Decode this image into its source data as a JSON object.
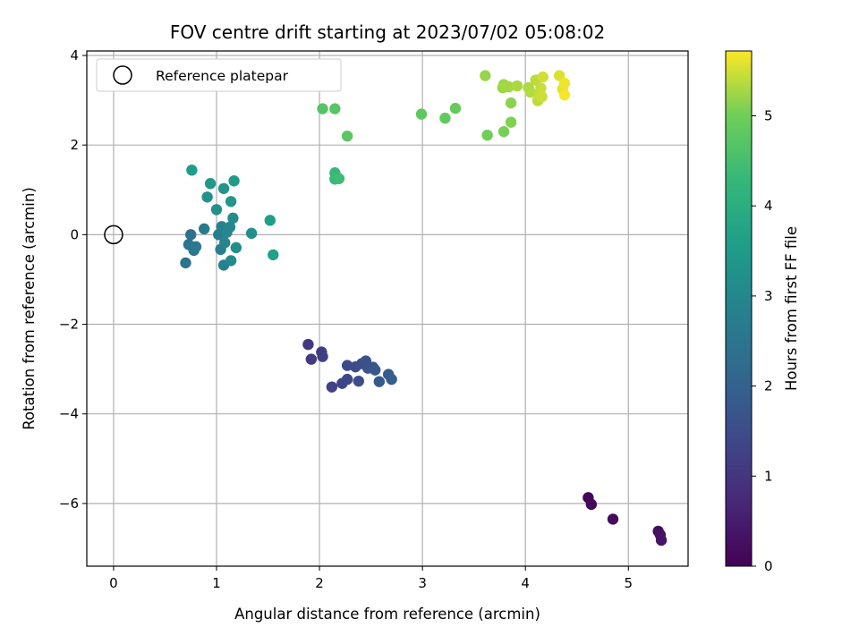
{
  "chart_data": {
    "type": "scatter",
    "title": "FOV centre drift starting at 2023/07/02 05:08:02",
    "xlabel": "Angular distance from reference (arcmin)",
    "ylabel": "Rotation from reference (arcmin)",
    "xlim": [
      -0.26,
      5.58
    ],
    "ylim": [
      -7.4,
      4.1
    ],
    "xticks": [
      0,
      1,
      2,
      3,
      4,
      5
    ],
    "yticks": [
      -6,
      -4,
      -2,
      0,
      2,
      4
    ],
    "xtick_labels": [
      "0",
      "1",
      "2",
      "3",
      "4",
      "5"
    ],
    "ytick_labels": [
      "−6",
      "−4",
      "−2",
      "0",
      "2",
      "4"
    ],
    "grid": true,
    "legend": {
      "placement": "top-left",
      "entries": [
        "Reference platepar"
      ]
    },
    "reference_point": {
      "x": 0,
      "y": 0
    },
    "colorbar": {
      "label": "Hours from first FF file",
      "range": [
        0,
        5.72
      ],
      "ticks": [
        0,
        1,
        2,
        3,
        4,
        5
      ],
      "tick_labels": [
        "0",
        "1",
        "2",
        "3",
        "4",
        "5"
      ],
      "colormap": "viridis"
    },
    "points": [
      {
        "x": 4.61,
        "y": -5.87,
        "t": 0.1
      },
      {
        "x": 4.64,
        "y": -6.02,
        "t": 0.15
      },
      {
        "x": 4.85,
        "y": -6.35,
        "t": 0.2
      },
      {
        "x": 5.29,
        "y": -6.62,
        "t": 0.25
      },
      {
        "x": 5.31,
        "y": -6.7,
        "t": 0.3
      },
      {
        "x": 5.32,
        "y": -6.82,
        "t": 0.35
      },
      {
        "x": 1.89,
        "y": -2.45,
        "t": 1.05
      },
      {
        "x": 1.92,
        "y": -2.78,
        "t": 1.1
      },
      {
        "x": 2.02,
        "y": -2.62,
        "t": 1.15
      },
      {
        "x": 2.03,
        "y": -2.72,
        "t": 1.2
      },
      {
        "x": 2.12,
        "y": -3.4,
        "t": 1.25
      },
      {
        "x": 2.22,
        "y": -3.32,
        "t": 1.3
      },
      {
        "x": 2.27,
        "y": -3.23,
        "t": 1.35
      },
      {
        "x": 2.27,
        "y": -2.92,
        "t": 1.4
      },
      {
        "x": 2.35,
        "y": -2.95,
        "t": 1.45
      },
      {
        "x": 2.38,
        "y": -3.27,
        "t": 1.5
      },
      {
        "x": 2.41,
        "y": -2.88,
        "t": 1.55
      },
      {
        "x": 2.45,
        "y": -2.82,
        "t": 1.6
      },
      {
        "x": 2.47,
        "y": -2.98,
        "t": 1.65
      },
      {
        "x": 2.52,
        "y": -2.96,
        "t": 1.7
      },
      {
        "x": 2.54,
        "y": -3.02,
        "t": 1.75
      },
      {
        "x": 2.58,
        "y": -3.28,
        "t": 1.8
      },
      {
        "x": 2.67,
        "y": -3.12,
        "t": 1.85
      },
      {
        "x": 2.7,
        "y": -3.23,
        "t": 1.9
      },
      {
        "x": 0.75,
        "y": 0.0,
        "t": 2.4
      },
      {
        "x": 0.7,
        "y": -0.63,
        "t": 2.45
      },
      {
        "x": 0.73,
        "y": -0.22,
        "t": 2.5
      },
      {
        "x": 0.78,
        "y": -0.35,
        "t": 2.55
      },
      {
        "x": 0.8,
        "y": -0.27,
        "t": 2.6
      },
      {
        "x": 0.88,
        "y": 0.13,
        "t": 2.65
      },
      {
        "x": 1.02,
        "y": 0.0,
        "t": 2.7
      },
      {
        "x": 1.04,
        "y": -0.33,
        "t": 2.75
      },
      {
        "x": 1.07,
        "y": -0.68,
        "t": 2.8
      },
      {
        "x": 1.05,
        "y": 0.18,
        "t": 2.85
      },
      {
        "x": 1.08,
        "y": -0.18,
        "t": 2.9
      },
      {
        "x": 1.1,
        "y": 0.05,
        "t": 2.95
      },
      {
        "x": 1.13,
        "y": 0.17,
        "t": 3.0
      },
      {
        "x": 1.14,
        "y": -0.58,
        "t": 3.05
      },
      {
        "x": 1.16,
        "y": 0.37,
        "t": 3.1
      },
      {
        "x": 1.19,
        "y": -0.29,
        "t": 3.15
      },
      {
        "x": 1.34,
        "y": 0.03,
        "t": 3.2
      },
      {
        "x": 1.0,
        "y": 0.56,
        "t": 3.25
      },
      {
        "x": 0.91,
        "y": 0.84,
        "t": 3.3
      },
      {
        "x": 1.07,
        "y": 1.03,
        "t": 3.35
      },
      {
        "x": 1.14,
        "y": 0.74,
        "t": 3.4
      },
      {
        "x": 0.94,
        "y": 1.14,
        "t": 3.45
      },
      {
        "x": 1.17,
        "y": 1.2,
        "t": 3.5
      },
      {
        "x": 0.76,
        "y": 1.44,
        "t": 3.55
      },
      {
        "x": 1.52,
        "y": 0.32,
        "t": 3.6
      },
      {
        "x": 1.55,
        "y": -0.45,
        "t": 3.65
      },
      {
        "x": 2.15,
        "y": 1.38,
        "t": 4.3
      },
      {
        "x": 2.15,
        "y": 1.24,
        "t": 4.35
      },
      {
        "x": 2.19,
        "y": 1.25,
        "t": 4.4
      },
      {
        "x": 2.03,
        "y": 2.81,
        "t": 4.7
      },
      {
        "x": 2.15,
        "y": 2.81,
        "t": 4.72
      },
      {
        "x": 2.27,
        "y": 2.2,
        "t": 4.75
      },
      {
        "x": 2.99,
        "y": 2.69,
        "t": 4.8
      },
      {
        "x": 3.22,
        "y": 2.6,
        "t": 4.85
      },
      {
        "x": 3.32,
        "y": 2.82,
        "t": 4.9
      },
      {
        "x": 3.63,
        "y": 2.22,
        "t": 5.0
      },
      {
        "x": 3.79,
        "y": 2.3,
        "t": 5.05
      },
      {
        "x": 3.86,
        "y": 2.51,
        "t": 5.1
      },
      {
        "x": 3.86,
        "y": 2.94,
        "t": 5.15
      },
      {
        "x": 3.61,
        "y": 3.55,
        "t": 5.2
      },
      {
        "x": 3.78,
        "y": 3.28,
        "t": 5.22
      },
      {
        "x": 3.79,
        "y": 3.35,
        "t": 5.25
      },
      {
        "x": 3.84,
        "y": 3.3,
        "t": 5.28
      },
      {
        "x": 3.92,
        "y": 3.32,
        "t": 5.3
      },
      {
        "x": 4.03,
        "y": 3.28,
        "t": 5.32
      },
      {
        "x": 4.05,
        "y": 3.18,
        "t": 5.35
      },
      {
        "x": 4.1,
        "y": 3.45,
        "t": 5.38
      },
      {
        "x": 4.12,
        "y": 2.99,
        "t": 5.4
      },
      {
        "x": 4.14,
        "y": 3.12,
        "t": 5.42
      },
      {
        "x": 4.15,
        "y": 3.27,
        "t": 5.45
      },
      {
        "x": 4.16,
        "y": 3.08,
        "t": 5.48
      },
      {
        "x": 4.17,
        "y": 3.52,
        "t": 5.5
      },
      {
        "x": 4.33,
        "y": 3.55,
        "t": 5.55
      },
      {
        "x": 4.36,
        "y": 3.25,
        "t": 5.6
      },
      {
        "x": 4.38,
        "y": 3.38,
        "t": 5.65
      },
      {
        "x": 4.38,
        "y": 3.12,
        "t": 5.7
      }
    ]
  }
}
